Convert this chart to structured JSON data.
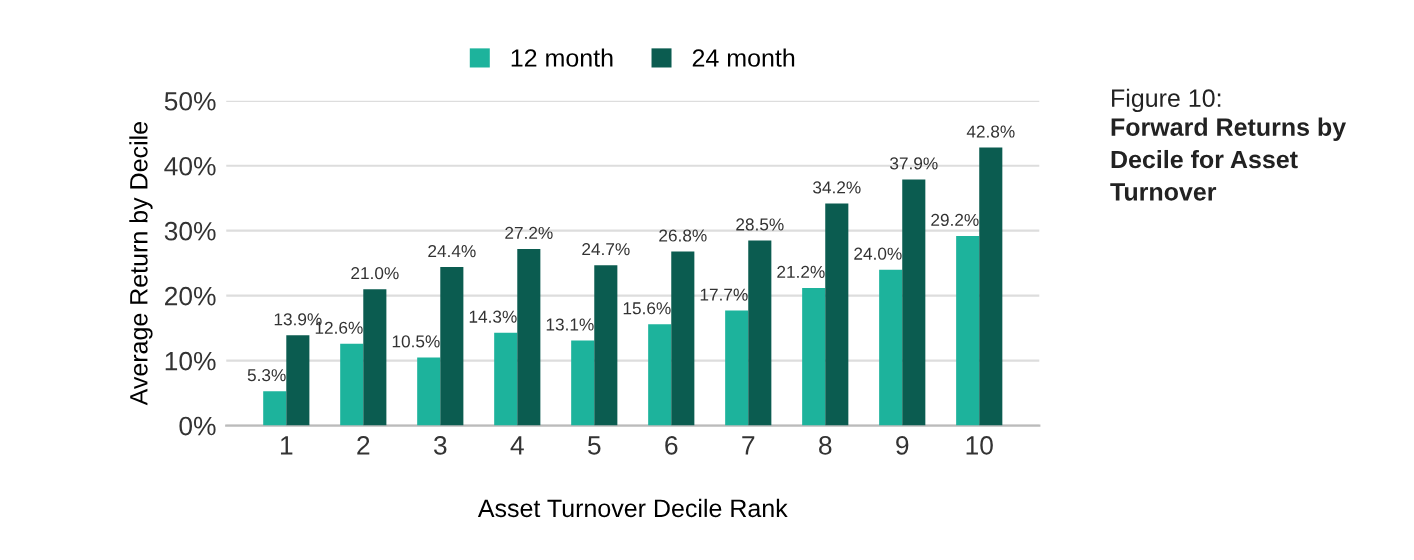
{
  "chart_data": {
    "type": "bar",
    "title": "Forward Returns by Decile for Asset Turnover",
    "subtitle": "Figure 10:",
    "xlabel": "Asset Turnover Decile Rank",
    "ylabel": "Average Return by Decile",
    "categories": [
      "1",
      "2",
      "3",
      "4",
      "5",
      "6",
      "7",
      "8",
      "9",
      "10"
    ],
    "series": [
      {
        "name": "12 month",
        "color": "#1db39c",
        "values": [
          5.3,
          12.6,
          10.5,
          14.3,
          13.1,
          15.6,
          17.7,
          21.2,
          24.0,
          29.2
        ],
        "value_labels": [
          "5.3%",
          "12.6%",
          "10.5%",
          "14.3%",
          "13.1%",
          "15.6%",
          "17.7%",
          "21.2%",
          "24.0%",
          "29.2%"
        ]
      },
      {
        "name": "24 month",
        "color": "#0b5c50",
        "values": [
          13.9,
          21.0,
          24.4,
          27.2,
          24.7,
          26.8,
          28.5,
          34.2,
          37.9,
          42.8
        ],
        "value_labels": [
          "13.9%",
          "21.0%",
          "24.4%",
          "27.2%",
          "24.7%",
          "26.8%",
          "28.5%",
          "34.2%",
          "37.9%",
          "42.8%"
        ]
      }
    ],
    "ylim": [
      0,
      50
    ],
    "yticks": [
      {
        "value": 0,
        "label": "0%"
      },
      {
        "value": 10,
        "label": "10%"
      },
      {
        "value": 20,
        "label": "20%"
      },
      {
        "value": 30,
        "label": "30%"
      },
      {
        "value": 40,
        "label": "40%"
      },
      {
        "value": 50,
        "label": "50%"
      }
    ],
    "grid": "y",
    "legend": "top"
  }
}
